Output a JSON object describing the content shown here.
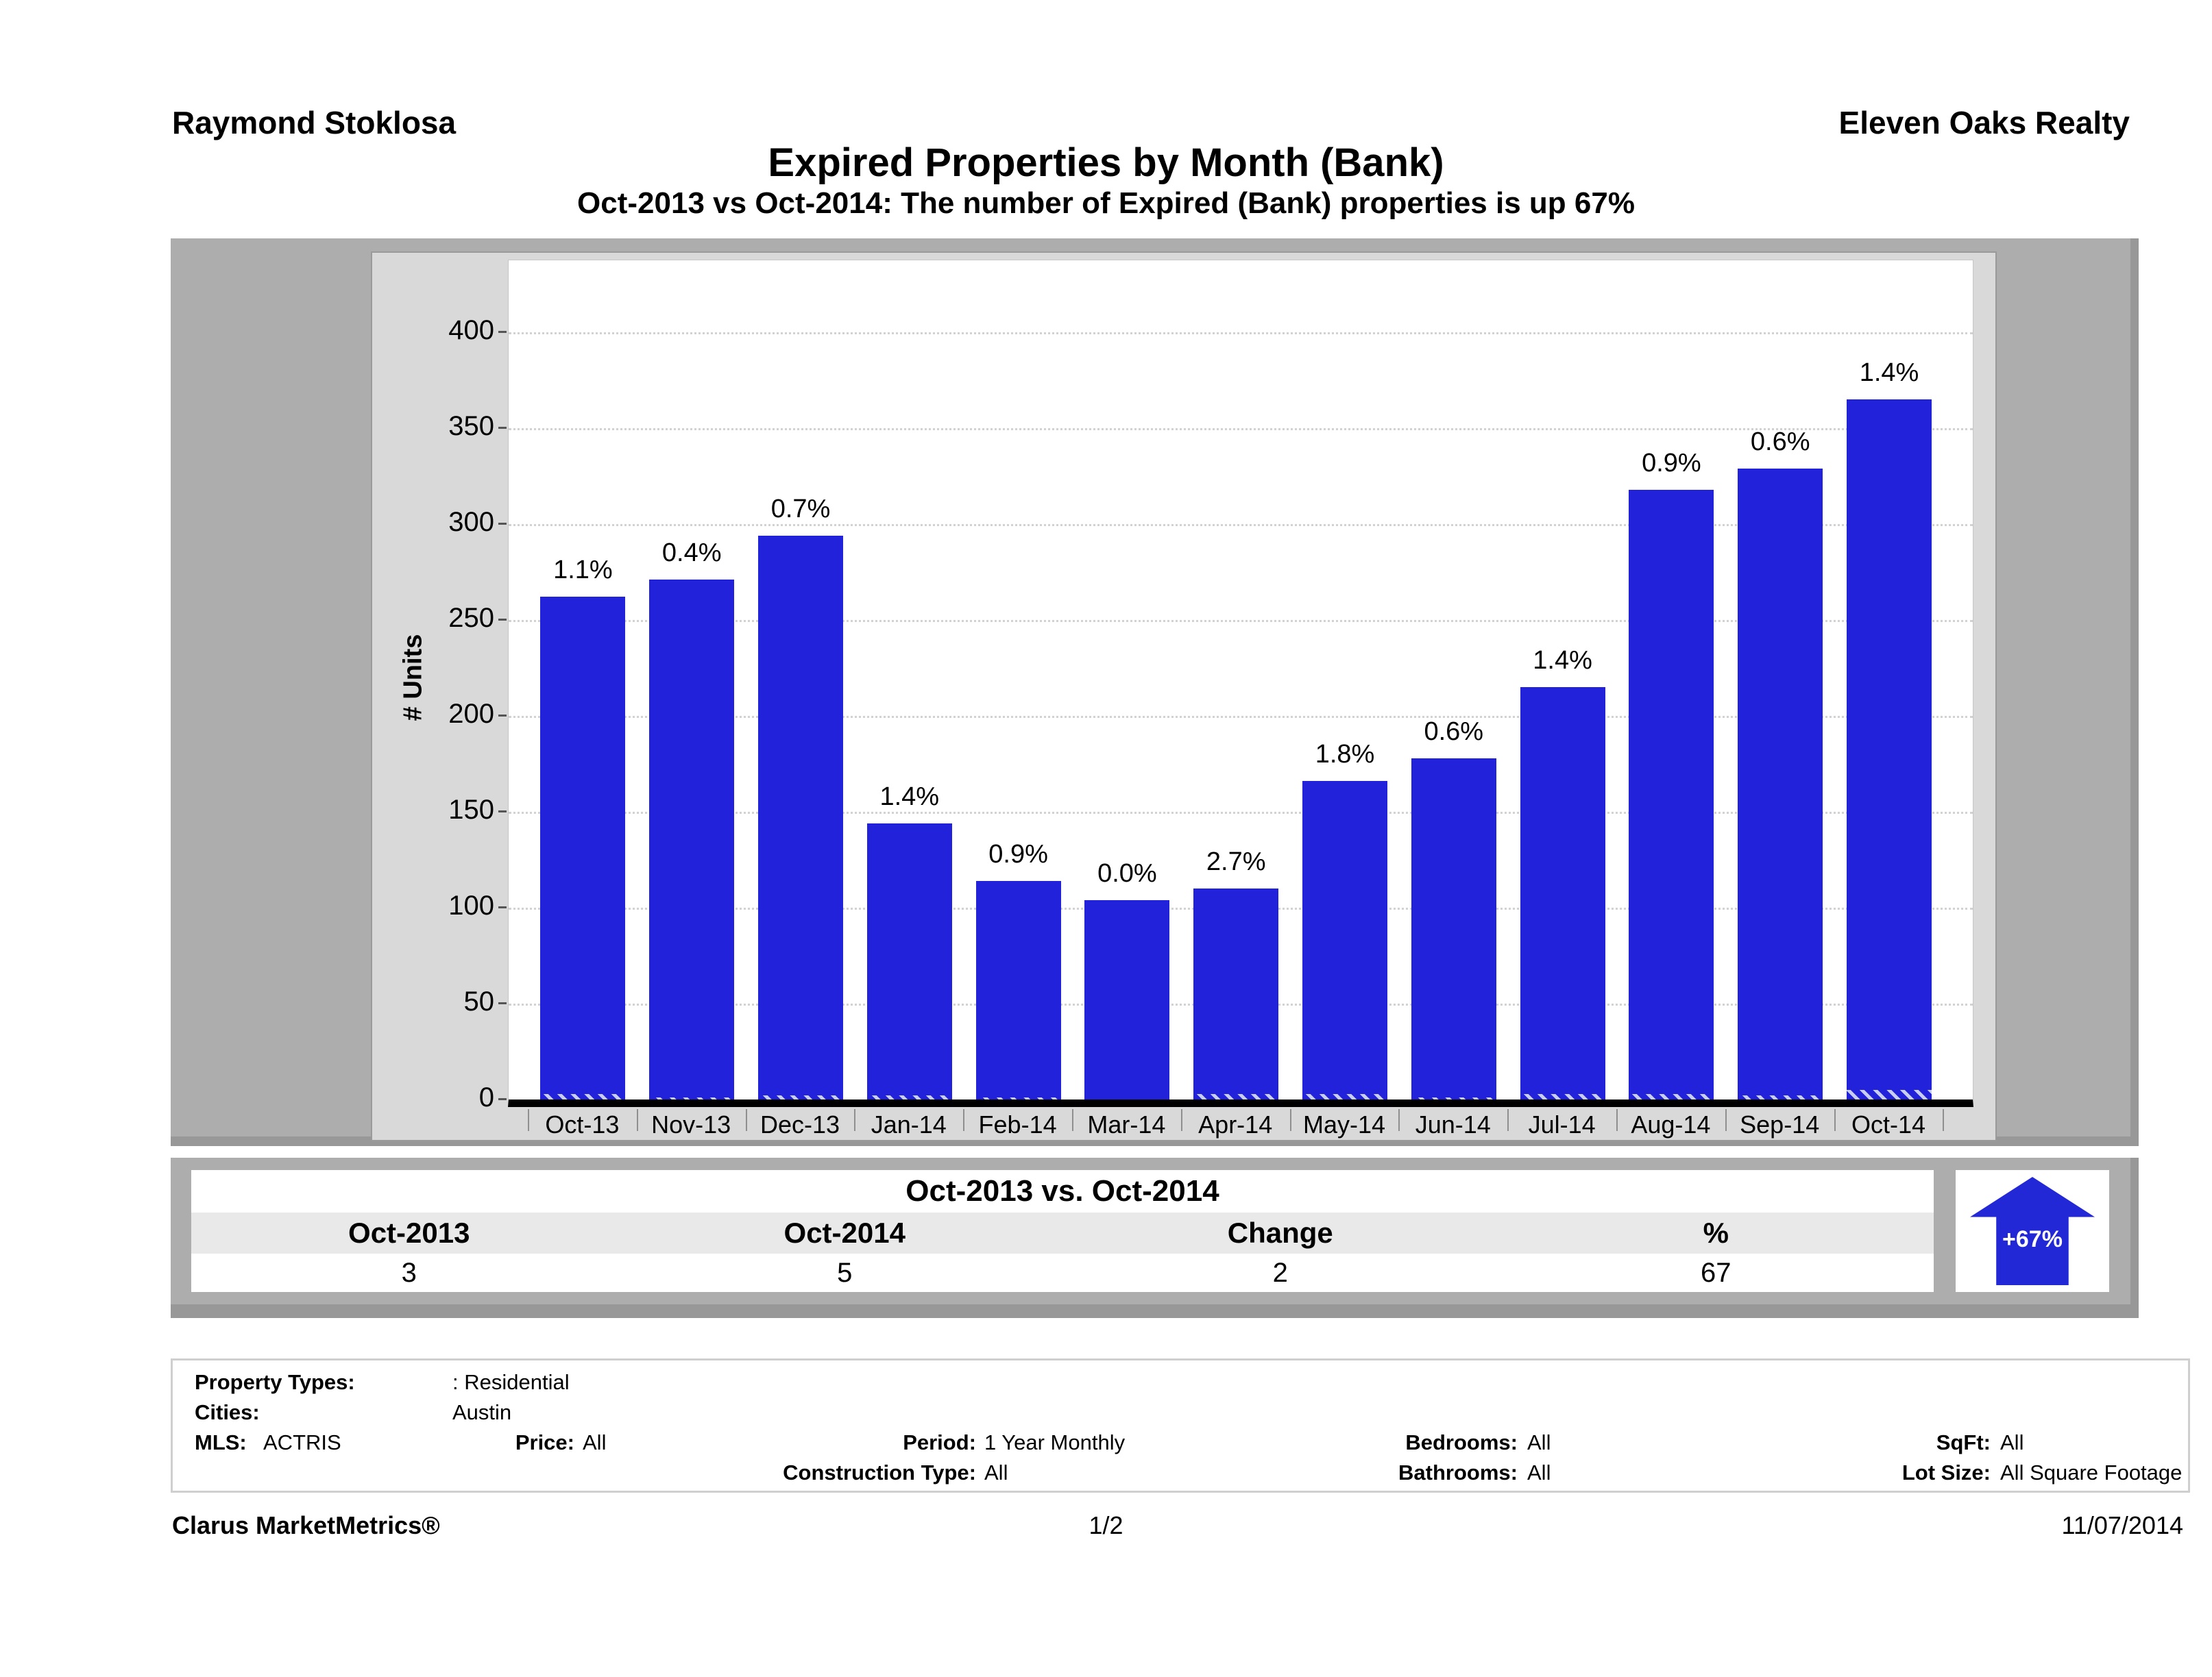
{
  "header": {
    "agent": "Raymond Stoklosa",
    "company": "Eleven Oaks Realty"
  },
  "title": "Expired Properties by Month (Bank)",
  "subtitle": "Oct-2013 vs Oct-2014: The number of Expired (Bank)  properties is up 67%",
  "colors": {
    "bar_blue": "#2122da",
    "arrow_blue": "#2328d6",
    "panel_gray": "#adadad",
    "frame_gray": "#d9d9d9",
    "table_header_gray": "#e9e9e9"
  },
  "chart_data": {
    "type": "bar",
    "title": "Expired Properties by Month (Bank)",
    "xlabel": "",
    "ylabel": "# Units",
    "ylim": [
      0,
      437
    ],
    "yticks": [
      0,
      50,
      100,
      150,
      200,
      250,
      300,
      350,
      400
    ],
    "grid": "horizontal dotted",
    "legend": "none",
    "categories": [
      "Oct-13",
      "Nov-13",
      "Dec-13",
      "Jan-14",
      "Feb-14",
      "Mar-14",
      "Apr-14",
      "May-14",
      "Jun-14",
      "Jul-14",
      "Aug-14",
      "Sep-14",
      "Oct-14"
    ],
    "series": [
      {
        "name": "total_expired_units",
        "style": "solid",
        "values": [
          262,
          271,
          294,
          144,
          114,
          104,
          110,
          166,
          178,
          215,
          318,
          329,
          365
        ]
      },
      {
        "name": "bank_expired_units",
        "style": "hatched",
        "values": [
          3,
          1,
          2,
          2,
          1,
          0,
          3,
          3,
          1,
          3,
          3,
          2,
          5
        ]
      }
    ],
    "bar_labels": [
      "1.1%",
      "0.4%",
      "0.7%",
      "1.4%",
      "0.9%",
      "0.0%",
      "2.7%",
      "1.8%",
      "0.6%",
      "1.4%",
      "0.9%",
      "0.6%",
      "1.4%"
    ]
  },
  "summary_table": {
    "title": "Oct-2013 vs. Oct-2014",
    "columns": [
      "Oct-2013",
      "Oct-2014",
      "Change",
      "%"
    ],
    "values": [
      "3",
      "5",
      "2",
      "67"
    ],
    "arrow_label": "+67%"
  },
  "filters": {
    "items": [
      {
        "label": "Property Types:",
        "value": ": Residential"
      },
      {
        "label": "Cities:",
        "value": "Austin"
      },
      {
        "label": "MLS:",
        "value": "ACTRIS"
      },
      {
        "label": "Price:",
        "value": "All"
      },
      {
        "label": "Period:",
        "value": "1 Year Monthly"
      },
      {
        "label": "Construction Type:",
        "value": "All"
      },
      {
        "label": "Bedrooms:",
        "value": "All"
      },
      {
        "label": "Bathrooms:",
        "value": "All"
      },
      {
        "label": "SqFt:",
        "value": "All"
      },
      {
        "label": "Lot Size:",
        "value": "All Square Footage"
      }
    ]
  },
  "footer": {
    "brand": "Clarus MarketMetrics®",
    "page": "1/2",
    "date": "11/07/2014"
  }
}
